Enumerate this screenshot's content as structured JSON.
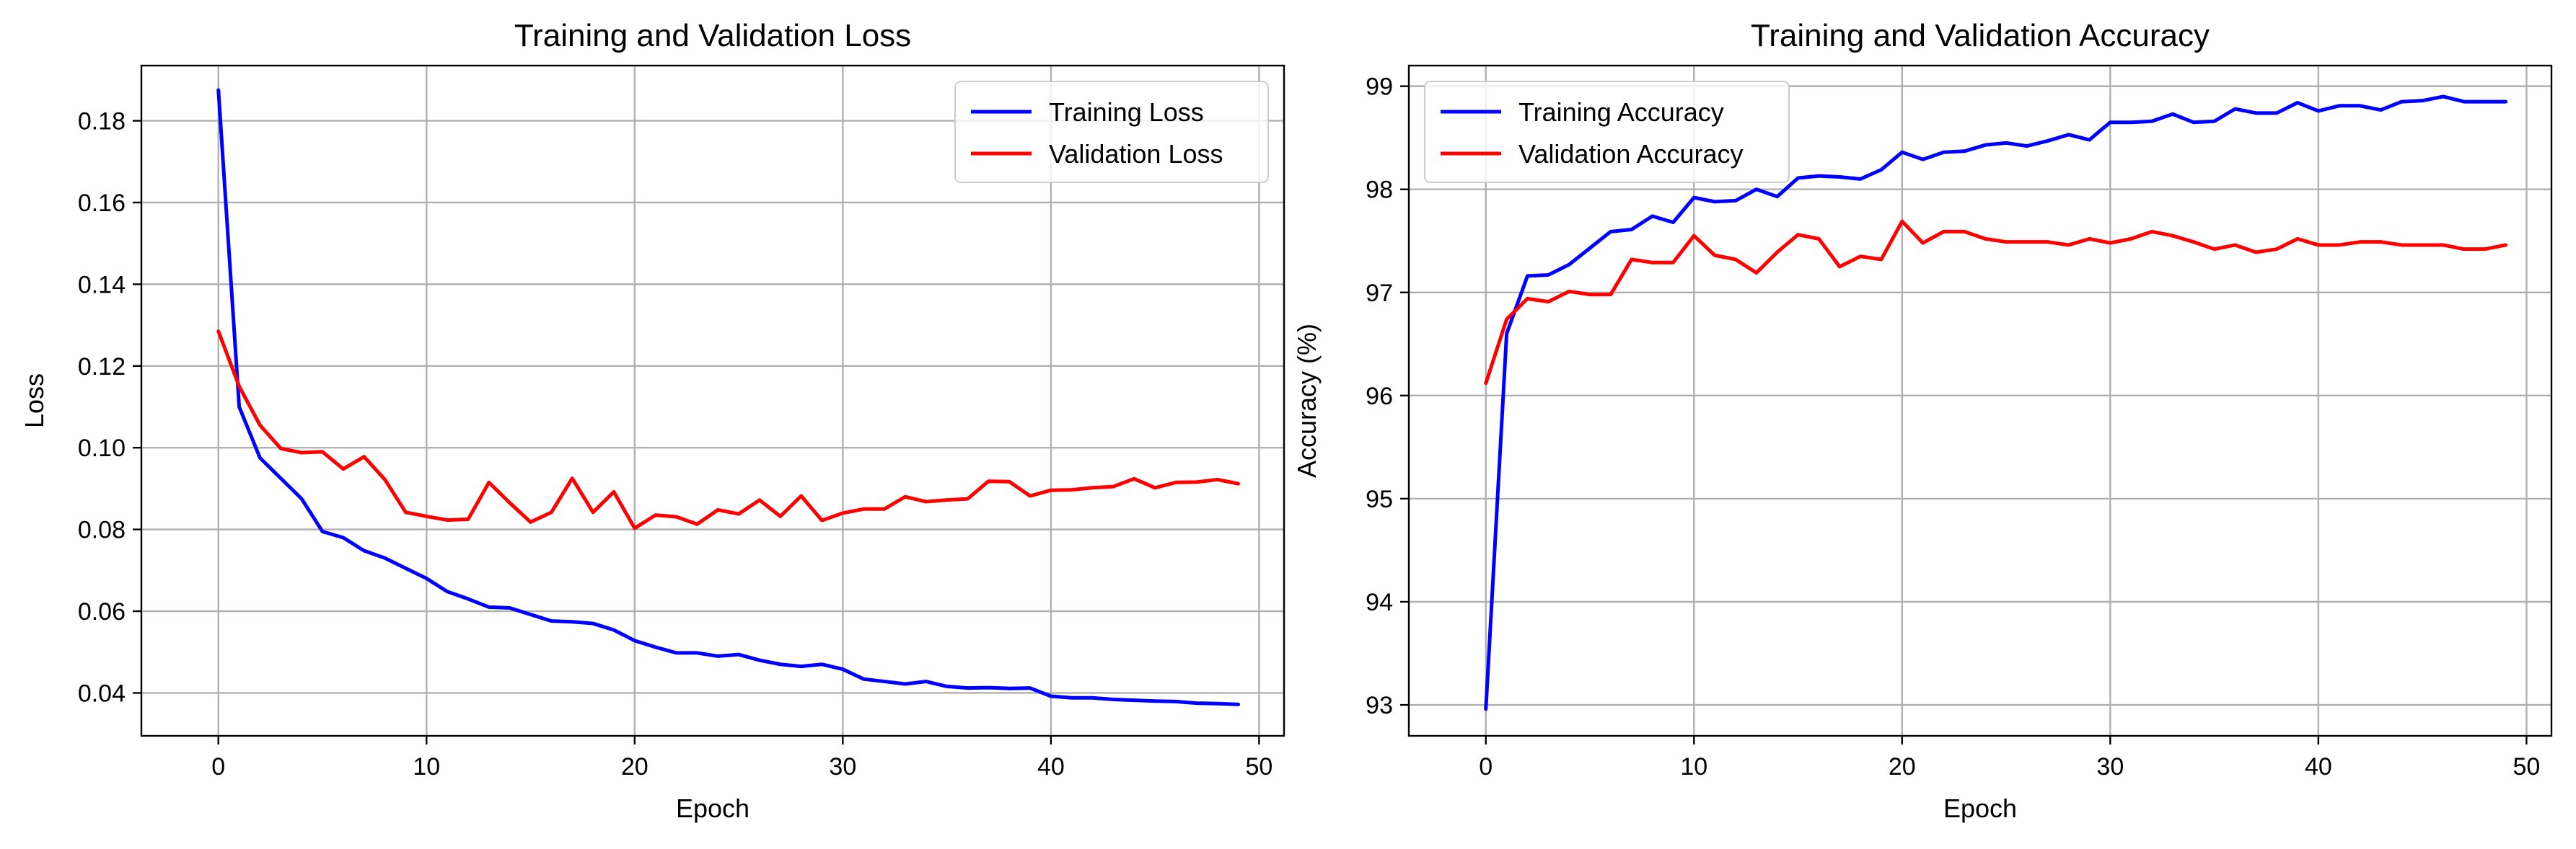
{
  "chart_data": [
    {
      "type": "line",
      "title": "Training and Validation Loss",
      "xlabel": "Epoch",
      "ylabel": "Loss",
      "xlim": [
        -3.7,
        51.2
      ],
      "ylim": [
        0.0295,
        0.1935
      ],
      "xticks": [
        0,
        10,
        20,
        30,
        40,
        50
      ],
      "xtick_labels": [
        "0",
        "10",
        "20",
        "30",
        "40",
        "50"
      ],
      "yticks": [
        0.04,
        0.06,
        0.08,
        0.1,
        0.12,
        0.14,
        0.16,
        0.18
      ],
      "ytick_labels": [
        "0.04",
        "0.06",
        "0.08",
        "0.10",
        "0.12",
        "0.14",
        "0.16",
        "0.18"
      ],
      "grid": true,
      "legend_position": "top-right",
      "x": [
        0,
        1,
        2,
        3,
        4,
        5,
        6,
        7,
        8,
        9,
        10,
        11,
        12,
        13,
        14,
        15,
        16,
        17,
        18,
        19,
        20,
        21,
        22,
        23,
        24,
        25,
        26,
        27,
        28,
        29,
        30,
        31,
        32,
        33,
        34,
        35,
        36,
        37,
        38,
        39,
        40,
        41,
        42,
        43,
        44,
        45,
        46,
        47,
        48,
        49
      ],
      "series": [
        {
          "name": "Training Loss",
          "color": "#0000ff",
          "values": [
            0.1875,
            0.11,
            0.0975,
            0.0925,
            0.0875,
            0.0795,
            0.078,
            0.0748,
            0.073,
            0.0705,
            0.068,
            0.0648,
            0.063,
            0.061,
            0.0608,
            0.0592,
            0.0576,
            0.0574,
            0.057,
            0.0554,
            0.0528,
            0.0512,
            0.0498,
            0.0498,
            0.049,
            0.0494,
            0.048,
            0.047,
            0.0465,
            0.047,
            0.0458,
            0.0434,
            0.0428,
            0.0422,
            0.0428,
            0.0416,
            0.0412,
            0.0413,
            0.0411,
            0.0412,
            0.0392,
            0.0388,
            0.0388,
            0.0384,
            0.0382,
            0.038,
            0.0379,
            0.0375,
            0.0374,
            0.0372
          ]
        },
        {
          "name": "Validation Loss",
          "color": "#ff0000",
          "values": [
            0.1285,
            0.115,
            0.1055,
            0.0998,
            0.0988,
            0.099,
            0.0948,
            0.0978,
            0.0922,
            0.0842,
            0.0832,
            0.0823,
            0.0825,
            0.0915,
            0.0865,
            0.0818,
            0.0842,
            0.0925,
            0.0842,
            0.0892,
            0.0803,
            0.0835,
            0.0831,
            0.0813,
            0.0848,
            0.0838,
            0.0872,
            0.0832,
            0.0882,
            0.0822,
            0.084,
            0.085,
            0.085,
            0.088,
            0.0868,
            0.0872,
            0.0875,
            0.0918,
            0.0917,
            0.0882,
            0.0896,
            0.0897,
            0.0902,
            0.0905,
            0.0924,
            0.0902,
            0.0915,
            0.0916,
            0.0922,
            0.0912
          ]
        }
      ]
    },
    {
      "type": "line",
      "title": "Training and Validation Accuracy",
      "xlabel": "Epoch",
      "ylabel": "Accuracy (%)",
      "xlim": [
        -3.7,
        51.2
      ],
      "ylim": [
        92.7,
        99.2
      ],
      "xticks": [
        0,
        10,
        20,
        30,
        40,
        50
      ],
      "xtick_labels": [
        "0",
        "10",
        "20",
        "30",
        "40",
        "50"
      ],
      "yticks": [
        93,
        94,
        95,
        96,
        97,
        98,
        99
      ],
      "ytick_labels": [
        "93",
        "94",
        "95",
        "96",
        "97",
        "98",
        "99"
      ],
      "grid": true,
      "legend_position": "top-left",
      "x": [
        0,
        1,
        2,
        3,
        4,
        5,
        6,
        7,
        8,
        9,
        10,
        11,
        12,
        13,
        14,
        15,
        16,
        17,
        18,
        19,
        20,
        21,
        22,
        23,
        24,
        25,
        26,
        27,
        28,
        29,
        30,
        31,
        32,
        33,
        34,
        35,
        36,
        37,
        38,
        39,
        40,
        41,
        42,
        43,
        44,
        45,
        46,
        47,
        48,
        49
      ],
      "series": [
        {
          "name": "Training Accuracy",
          "color": "#0000ff",
          "values": [
            92.96,
            96.6,
            97.16,
            97.17,
            97.27,
            97.43,
            97.59,
            97.61,
            97.74,
            97.68,
            97.92,
            97.88,
            97.89,
            98.0,
            97.93,
            98.11,
            98.13,
            98.12,
            98.1,
            98.19,
            98.36,
            98.29,
            98.36,
            98.37,
            98.43,
            98.45,
            98.42,
            98.47,
            98.53,
            98.48,
            98.65,
            98.65,
            98.66,
            98.73,
            98.65,
            98.66,
            98.78,
            98.74,
            98.74,
            98.84,
            98.76,
            98.81,
            98.81,
            98.77,
            98.85,
            98.86,
            98.9,
            98.85,
            98.85,
            98.85
          ]
        },
        {
          "name": "Validation Accuracy",
          "color": "#ff0000",
          "values": [
            96.12,
            96.74,
            96.94,
            96.91,
            97.01,
            96.98,
            96.98,
            97.32,
            97.29,
            97.29,
            97.55,
            97.36,
            97.32,
            97.19,
            97.39,
            97.56,
            97.52,
            97.25,
            97.35,
            97.32,
            97.69,
            97.48,
            97.59,
            97.59,
            97.52,
            97.49,
            97.49,
            97.49,
            97.46,
            97.52,
            97.48,
            97.52,
            97.59,
            97.55,
            97.49,
            97.42,
            97.46,
            97.39,
            97.42,
            97.52,
            97.46,
            97.46,
            97.49,
            97.49,
            97.46,
            97.46,
            97.46,
            97.42,
            97.42,
            97.46
          ]
        }
      ]
    }
  ]
}
